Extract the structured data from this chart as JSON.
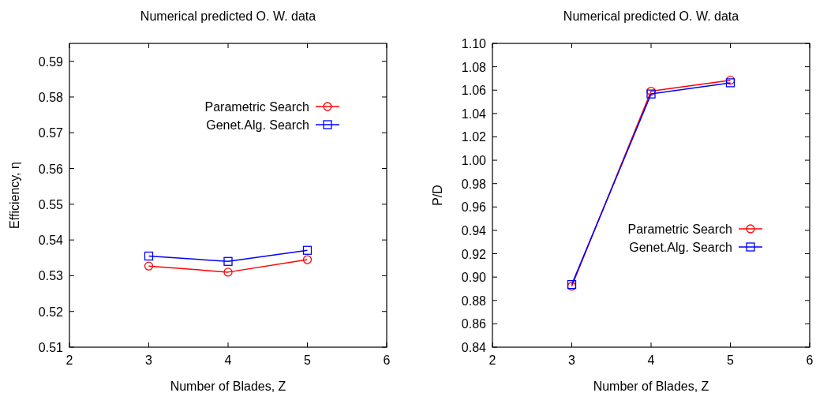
{
  "chart_data": [
    {
      "type": "line",
      "title": "Numerical predicted O. W. data",
      "xlabel": "Number of Blades, Z",
      "ylabel": "Efficiency, η",
      "x": [
        3,
        4,
        5
      ],
      "xlim": [
        2,
        6
      ],
      "xticks": [
        2,
        3,
        4,
        5,
        6
      ],
      "ylim": [
        0.51,
        0.595
      ],
      "yticks": [
        0.51,
        0.52,
        0.53,
        0.54,
        0.55,
        0.56,
        0.57,
        0.58,
        0.59
      ],
      "legend": "top right",
      "grid": false,
      "series": [
        {
          "name": "Parametric Search",
          "color": "#ff0000",
          "marker": "circle",
          "values": [
            0.5327,
            0.531,
            0.5345
          ]
        },
        {
          "name": "Genet.Alg. Search",
          "color": "#0000ff",
          "marker": "square",
          "values": [
            0.5355,
            0.534,
            0.5371
          ]
        }
      ]
    },
    {
      "type": "line",
      "title": "Numerical predicted O. W. data",
      "xlabel": "Number of Blades, Z",
      "ylabel": "P/D",
      "x": [
        3,
        4,
        5
      ],
      "xlim": [
        2,
        6
      ],
      "xticks": [
        2,
        3,
        4,
        5,
        6
      ],
      "ylim": [
        0.84,
        1.1
      ],
      "yticks": [
        0.84,
        0.86,
        0.88,
        {
          "value": 0.9,
          "label": "0.90"
        },
        0.92,
        0.94,
        0.96,
        0.98,
        {
          "value": 1,
          "label": "1.00"
        },
        1.02,
        1.04,
        1.06,
        1.08,
        {
          "value": 1.1,
          "label": "1.10"
        }
      ],
      "legend": "right",
      "grid": false,
      "series": [
        {
          "name": "Parametric Search",
          "color": "#ff0000",
          "marker": "circle",
          "values": [
            0.8922,
            1.0591,
            1.0685
          ]
        },
        {
          "name": "Genet.Alg. Search",
          "color": "#0000ff",
          "marker": "square",
          "values": [
            0.8936,
            1.0567,
            1.0663
          ]
        }
      ]
    }
  ]
}
